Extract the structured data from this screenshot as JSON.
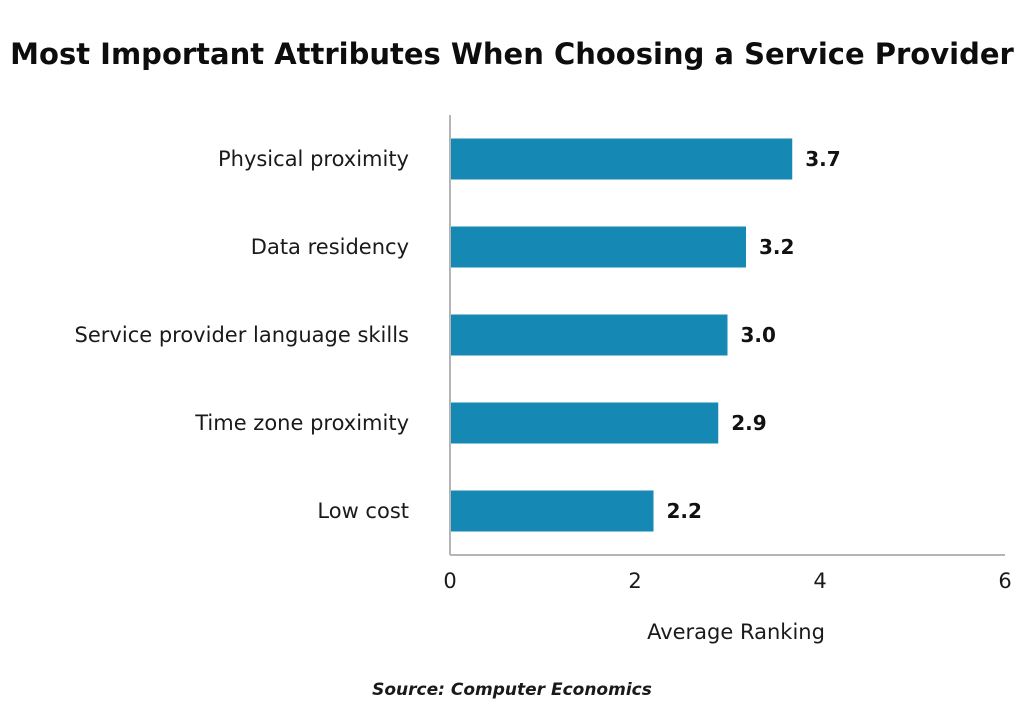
{
  "chart_data": {
    "type": "bar",
    "orientation": "horizontal",
    "title": "Most Important Attributes When Choosing a Service Provider",
    "categories": [
      "Physical proximity",
      "Data residency",
      "Service provider language skills",
      "Time zone proximity",
      "Low cost"
    ],
    "values": [
      3.7,
      3.2,
      3.0,
      2.9,
      2.2
    ],
    "value_labels": [
      "3.7",
      "3.2",
      "3.0",
      "2.9",
      "2.2"
    ],
    "xlabel": "Average Ranking",
    "ylabel": "",
    "xlim": [
      0,
      6
    ],
    "xticks": [
      0,
      2,
      4,
      6
    ],
    "xtick_labels": [
      "0",
      "2",
      "4",
      "6"
    ],
    "grid": false,
    "legend": "none",
    "bar_color": "#1589b4",
    "axis_color": "#b5b5b5"
  },
  "source": "Source: Computer Economics"
}
